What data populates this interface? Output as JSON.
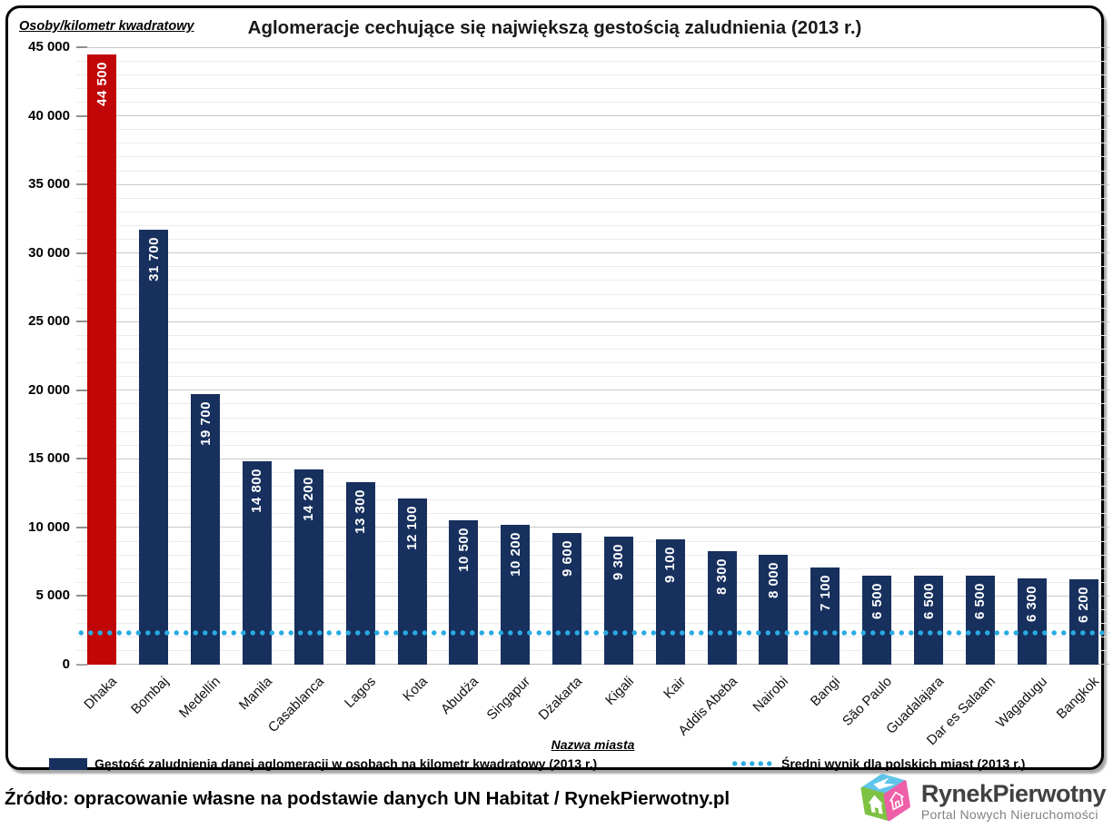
{
  "header": {
    "title": "Aglomeracje cechujące się największą gestością zaludnienia (2013 r.)",
    "y_axis_title": "Osoby/kilometr kwadratowy"
  },
  "axes": {
    "x_title": "Nazwa miasta"
  },
  "chart_data": {
    "type": "bar",
    "title": "Aglomeracje cechujące się największą gestością zaludnienia (2013 r.)",
    "xlabel": "Nazwa miasta",
    "ylabel": "Osoby/kilometr kwadratowy",
    "categories": [
      "Dhaka",
      "Bombaj",
      "Medellín",
      "Manila",
      "Casablanca",
      "Lagos",
      "Kota",
      "Abudża",
      "Singapur",
      "Dżakarta",
      "Kigali",
      "Kair",
      "Addis Abeba",
      "Nairobi",
      "Bangi",
      "São Paulo",
      "Guadalajara",
      "Dar es Salaam",
      "Wagadugu",
      "Bangkok"
    ],
    "values": [
      44500,
      31700,
      19700,
      14800,
      14200,
      13300,
      12100,
      10500,
      10200,
      9600,
      9300,
      9100,
      8300,
      8000,
      7100,
      6500,
      6500,
      6500,
      6300,
      6200
    ],
    "highlight_index": 0,
    "bar_color": "#17305e",
    "highlight_color": "#c00606",
    "ylim": [
      0,
      45000
    ],
    "y_major_step": 5000,
    "y_minor_step": 1000,
    "grid": true,
    "legend_position": "bottom",
    "avg_line": {
      "value": 2300,
      "color": "#29abe2",
      "label": "Średni wynik dla polskich miast (2013 r.)"
    }
  },
  "legend": {
    "series_label": "Gęstość zaludnienia danej aglomeracji w osobach na kilometr kwadratowy (2013 r.)",
    "avg_label": "Średni wynik dla polskich miast (2013 r.)"
  },
  "footer": {
    "source": "Źródło: opracowanie własne na podstawie danych UN Habitat / RynekPierwotny.pl"
  },
  "logo": {
    "name": "RynekPierwotny",
    "tagline": "Portal Nowych Nieruchomości",
    "cube_top_color": "#5fc4e9",
    "cube_left_color": "#7dc242",
    "cube_right_color": "#ee5fa7",
    "icon": "cube-house-icon"
  }
}
